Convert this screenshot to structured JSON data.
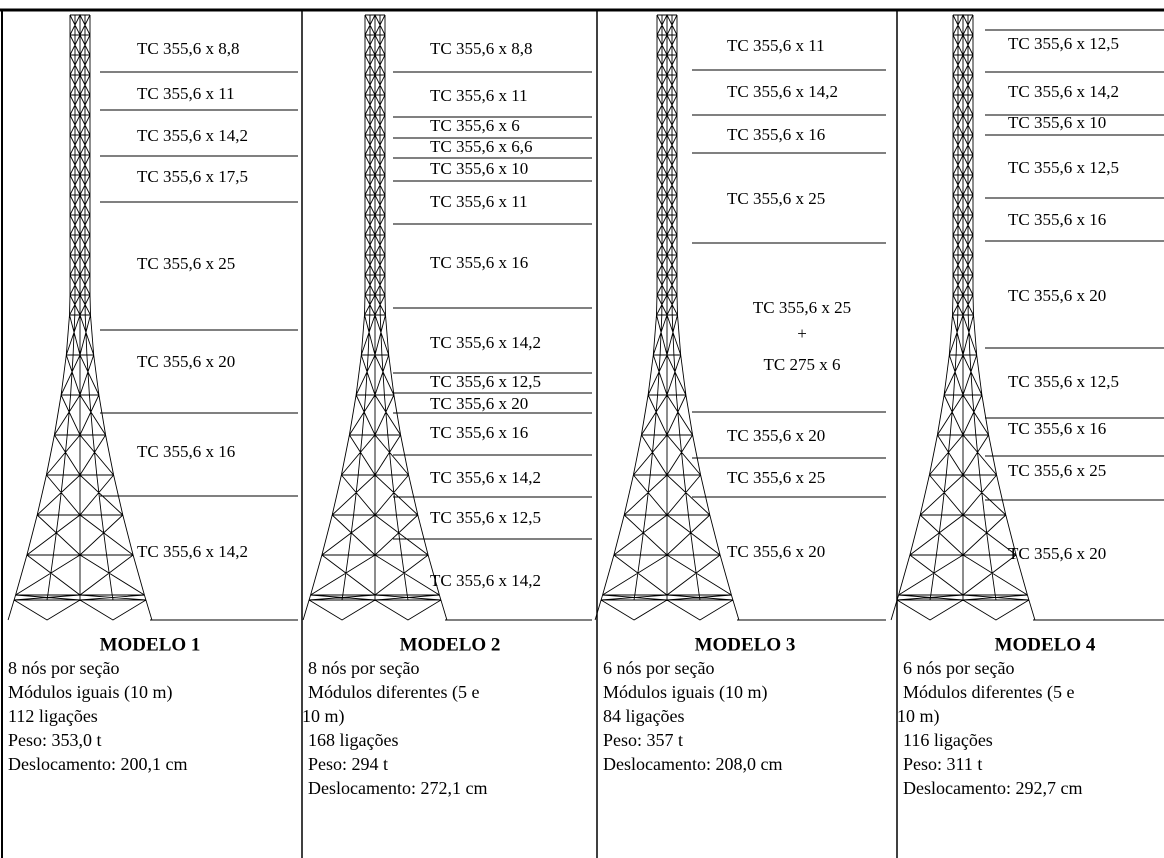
{
  "models": [
    {
      "sections": [
        [
          "TC 355,6 x 8,8"
        ],
        [
          "TC 355,6 x 11"
        ],
        [
          "TC 355,6 x 14,2"
        ],
        [
          "TC 355,6 x 17,5"
        ],
        [
          "TC 355,6 x 25"
        ],
        [
          "TC 355,6 x 20"
        ],
        [
          "TC 355,6 x 16"
        ],
        [
          "TC 355,6 x 14,2"
        ]
      ],
      "title": "MODELO 1",
      "lines": [
        "8 nós por seção",
        "Módulos iguais (10 m)",
        "112 ligações",
        "Peso: 353,0 t",
        "Deslocamento: 200,1 cm"
      ]
    },
    {
      "sections": [
        [
          "TC 355,6 x 8,8"
        ],
        [
          "TC 355,6 x 11"
        ],
        [
          "TC 355,6 x 6"
        ],
        [
          "TC 355,6 x 6,6"
        ],
        [
          "TC 355,6 x 10"
        ],
        [
          "TC 355,6 x 11"
        ],
        [
          "TC 355,6 x 16"
        ],
        [
          "TC 355,6 x 14,2"
        ],
        [
          "TC 355,6 x 12,5"
        ],
        [
          "TC 355,6 x 20"
        ],
        [
          "TC 355,6 x 16"
        ],
        [
          "TC 355,6 x 14,2"
        ],
        [
          "TC 355,6 x 12,5"
        ],
        [
          "TC 355,6 x 14,2"
        ]
      ],
      "title": "MODELO 2",
      "lines": [
        "8 nós por seção",
        "Módulos diferentes (5 e",
        "10 m)",
        "168 ligações",
        "Peso: 294 t",
        "Deslocamento: 272,1 cm"
      ]
    },
    {
      "sections": [
        [
          "TC 355,6 x 11"
        ],
        [
          "TC 355,6 x 14,2"
        ],
        [
          "TC 355,6 x 16"
        ],
        [
          "TC 355,6 x 25"
        ],
        [
          "TC 355,6 x 25",
          "+",
          "TC 275 x 6"
        ],
        [
          "TC 355,6 x 20"
        ],
        [
          "TC 355,6 x 25"
        ],
        [
          "TC 355,6 x 20"
        ]
      ],
      "title": "MODELO 3",
      "lines": [
        "6 nós por seção",
        "Módulos iguais (10 m)",
        "84 ligações",
        "Peso: 357 t",
        "Deslocamento: 208,0 cm"
      ]
    },
    {
      "sections": [
        [
          "TC 355,6 x 12,5"
        ],
        [
          "TC 355,6 x 14,2"
        ],
        [
          "TC 355,6 x 10"
        ],
        [
          "TC 355,6 x 12,5"
        ],
        [
          "TC 355,6 x 16"
        ],
        [
          "TC 355,6 x 20"
        ],
        [
          "TC 355,6 x 12,5"
        ],
        [
          "TC 355,6 x 16"
        ],
        [
          "TC 355,6 x 25"
        ],
        [
          "TC 355,6 x 20"
        ]
      ],
      "title": "MODELO 4",
      "lines": [
        "6 nós por seção",
        "Módulos diferentes (5 e",
        "10 m)",
        "116 ligações",
        "Peso: 311 t",
        "Deslocamento: 292,7 cm"
      ]
    }
  ]
}
